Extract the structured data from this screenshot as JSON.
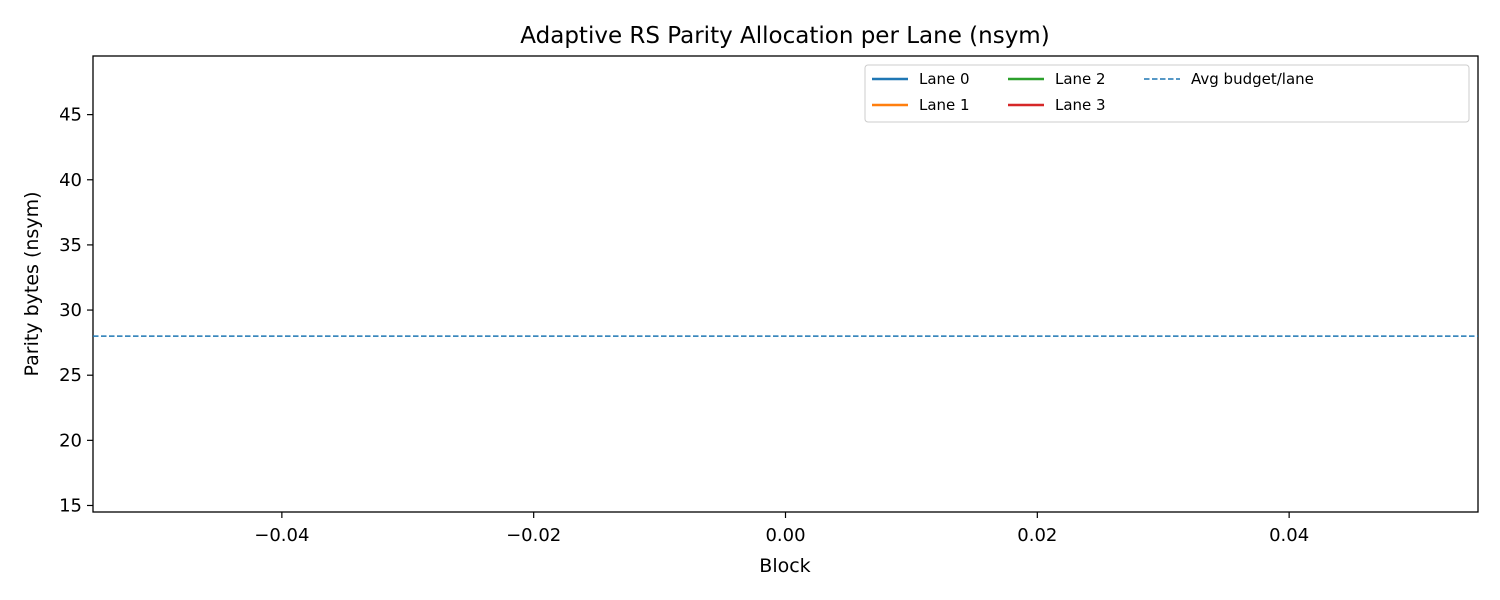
{
  "chart_data": {
    "type": "line",
    "title": "Adaptive RS Parity Allocation per Lane (nsym)",
    "xlabel": "Block",
    "ylabel": "Parity bytes (nsym)",
    "xlim": [
      -0.055,
      0.055
    ],
    "ylim": [
      14.5,
      49.5
    ],
    "xticks": [
      -0.04,
      -0.02,
      0.0,
      0.02,
      0.04
    ],
    "xtick_labels": [
      "−0.04",
      "−0.02",
      "0.00",
      "0.02",
      "0.04"
    ],
    "yticks": [
      15,
      20,
      25,
      30,
      35,
      40,
      45
    ],
    "ytick_labels": [
      "15",
      "20",
      "25",
      "30",
      "35",
      "40",
      "45"
    ],
    "grid": false,
    "legend_position": "top-right",
    "series": [
      {
        "name": "Lane 0",
        "color": "#1f77b4",
        "style": "solid",
        "x": [],
        "values": []
      },
      {
        "name": "Lane 1",
        "color": "#ff7f0e",
        "style": "solid",
        "x": [],
        "values": []
      },
      {
        "name": "Lane 2",
        "color": "#2ca02c",
        "style": "solid",
        "x": [],
        "values": []
      },
      {
        "name": "Lane 3",
        "color": "#d62728",
        "style": "solid",
        "x": [],
        "values": []
      }
    ],
    "reference_lines": [
      {
        "name": "Avg budget/lane",
        "orientation": "horizontal",
        "value": 28,
        "color": "#1f77b4",
        "style": "dashed"
      }
    ]
  }
}
